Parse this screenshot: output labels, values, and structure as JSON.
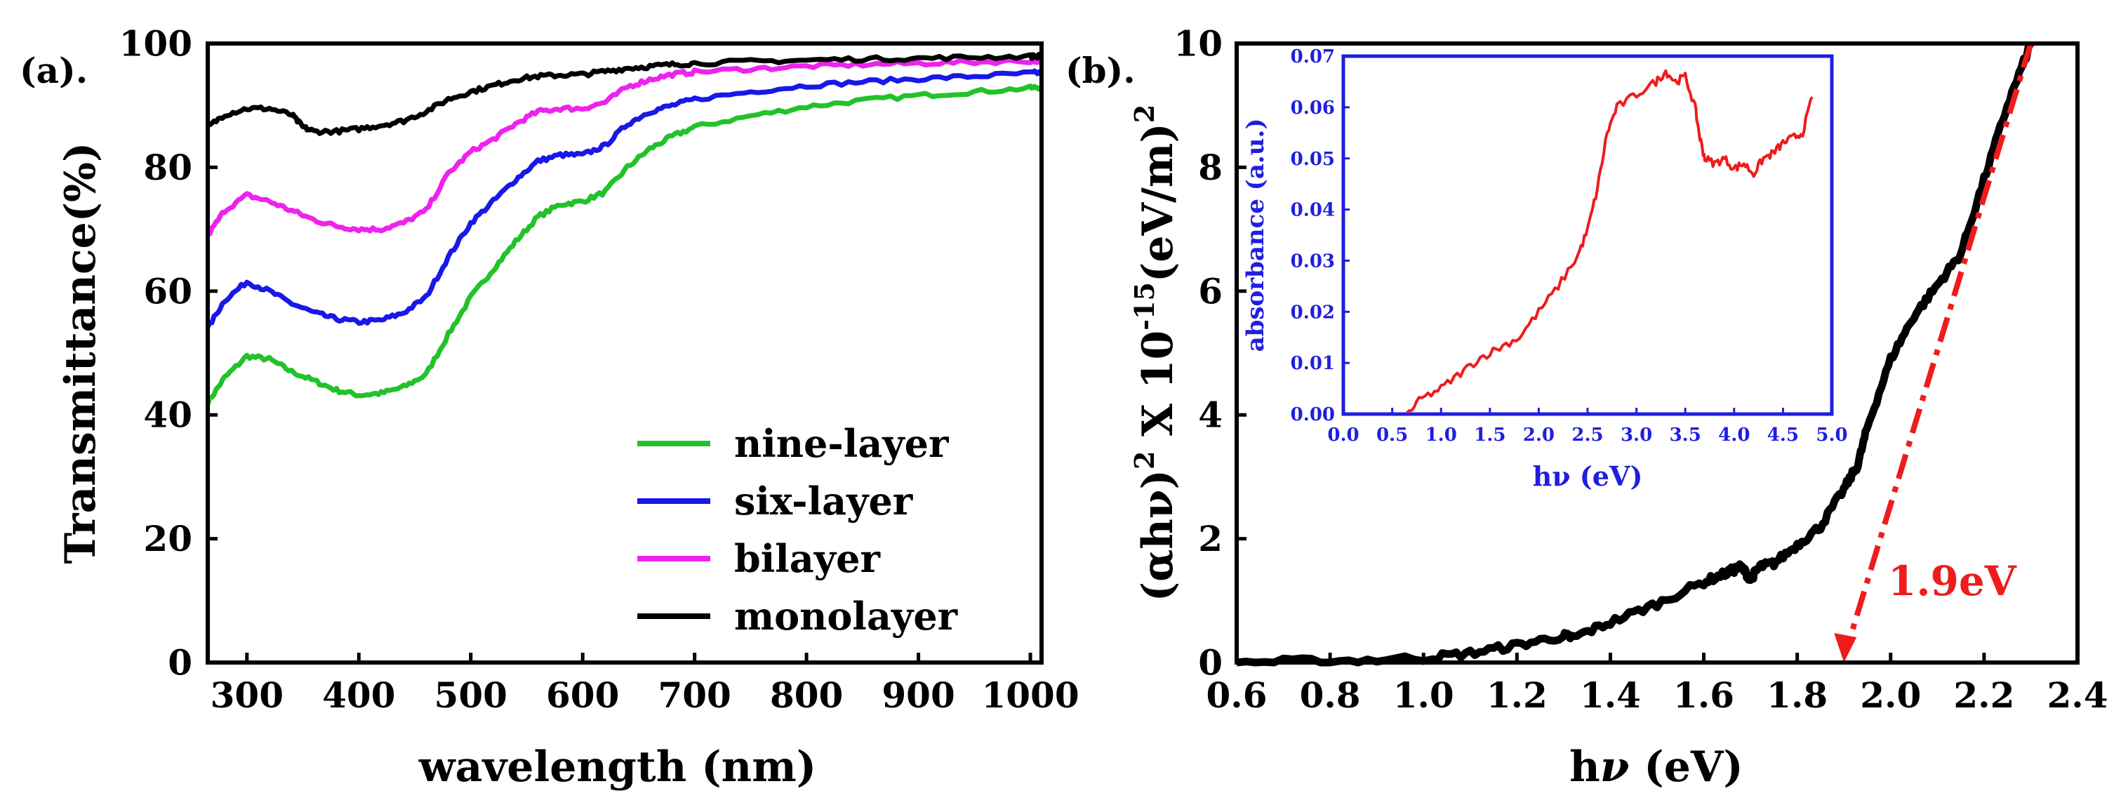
{
  "chart_data": [
    {
      "panel_label": "(a).",
      "type": "line",
      "xlabel": "wavelength (nm)",
      "ylabel": "Transmittance(%)",
      "xlim": [
        265,
        1010
      ],
      "ylim": [
        0,
        100
      ],
      "xticks": [
        300,
        400,
        500,
        600,
        700,
        800,
        900,
        1000
      ],
      "yticks": [
        0,
        20,
        40,
        60,
        80,
        100
      ],
      "legend_position": "bottom-right",
      "series": [
        {
          "name": "nine-layer",
          "color": "#22c22a",
          "x": [
            265,
            280,
            300,
            320,
            340,
            360,
            380,
            400,
            420,
            440,
            460,
            480,
            500,
            520,
            540,
            560,
            580,
            600,
            620,
            640,
            660,
            680,
            700,
            750,
            800,
            850,
            900,
            950,
            1000,
            1010
          ],
          "y": [
            42,
            46,
            49.5,
            49,
            47,
            45.5,
            44,
            43.2,
            43.5,
            44.5,
            46.5,
            53,
            59,
            63.5,
            68,
            72,
            74,
            74.5,
            76,
            80,
            83,
            85,
            86.5,
            88.3,
            89.8,
            90.8,
            91.6,
            92.2,
            92.8,
            93
          ]
        },
        {
          "name": "six-layer",
          "color": "#1818e8",
          "x": [
            265,
            280,
            300,
            320,
            340,
            360,
            380,
            400,
            420,
            440,
            460,
            480,
            500,
            520,
            540,
            560,
            580,
            600,
            620,
            640,
            660,
            680,
            700,
            750,
            800,
            850,
            900,
            950,
            1000,
            1010
          ],
          "y": [
            54,
            58.5,
            61.5,
            60,
            58,
            56.5,
            55.5,
            55,
            55.3,
            56.5,
            59,
            65.5,
            71,
            74.5,
            78,
            81,
            82,
            82,
            83.5,
            87,
            89,
            90,
            91,
            92.2,
            93.2,
            93.8,
            94.3,
            94.7,
            95.2,
            95.3
          ]
        },
        {
          "name": "bilayer",
          "color": "#ee22ee",
          "x": [
            265,
            280,
            300,
            320,
            340,
            360,
            380,
            400,
            420,
            440,
            460,
            480,
            500,
            520,
            540,
            560,
            580,
            600,
            620,
            640,
            660,
            680,
            700,
            750,
            800,
            850,
            900,
            950,
            1000,
            1010
          ],
          "y": [
            69,
            73,
            75.5,
            74.5,
            73,
            71.5,
            70.5,
            70,
            70,
            71,
            73,
            79,
            82.5,
            84.5,
            87,
            89,
            89.5,
            89.5,
            90.5,
            93,
            94.2,
            95,
            95.4,
            95.9,
            96.3,
            96.6,
            96.8,
            97,
            97.2,
            97.3
          ]
        },
        {
          "name": "monolayer",
          "color": "#000000",
          "x": [
            265,
            280,
            300,
            320,
            340,
            350,
            360,
            380,
            400,
            420,
            440,
            460,
            480,
            500,
            520,
            540,
            560,
            580,
            600,
            620,
            640,
            660,
            680,
            700,
            750,
            800,
            850,
            900,
            950,
            1000,
            1010
          ],
          "y": [
            86.5,
            88.5,
            89.5,
            89.5,
            88.5,
            86.5,
            85.8,
            85.8,
            86.2,
            86.8,
            87.5,
            89,
            91,
            92.2,
            93.2,
            94.2,
            94.7,
            94.9,
            95,
            95.5,
            96,
            96.3,
            96.6,
            96.8,
            97.1,
            97.3,
            97.5,
            97.6,
            97.8,
            97.9,
            98
          ]
        }
      ]
    },
    {
      "panel_label": "(b).",
      "type": "line",
      "xlabel": "hν (eV)",
      "ylabel": "(αhν)² X 10⁻¹⁵(eV/m)²",
      "ylabel_parts": {
        "a": "(αhν)",
        "exp2": "2",
        "b": " X 10",
        "exp15": "-15",
        "c": "(eV/m)"
      },
      "xlabel_parts": {
        "a": "h",
        "nu": "ν",
        "b": " (eV)"
      },
      "xlim": [
        0.6,
        2.4
      ],
      "ylim": [
        0,
        10
      ],
      "xticks": [
        0.6,
        0.8,
        1.0,
        1.2,
        1.4,
        1.6,
        1.8,
        2.0,
        2.2,
        2.4
      ],
      "yticks": [
        0,
        2,
        4,
        6,
        8,
        10
      ],
      "annotation": "1.9eV",
      "series": [
        {
          "name": "(αhν)^2",
          "color": "#000000",
          "x": [
            0.6,
            0.8,
            1.0,
            1.1,
            1.2,
            1.3,
            1.32,
            1.4,
            1.5,
            1.6,
            1.65,
            1.68,
            1.7,
            1.72,
            1.75,
            1.8,
            1.85,
            1.9,
            1.93,
            1.95,
            2.0,
            2.05,
            2.1,
            2.15,
            2.2,
            2.25,
            2.3
          ],
          "y": [
            0.0,
            0.02,
            0.07,
            0.15,
            0.28,
            0.43,
            0.4,
            0.65,
            0.95,
            1.3,
            1.45,
            1.55,
            1.35,
            1.55,
            1.6,
            1.9,
            2.2,
            2.8,
            3.2,
            3.8,
            4.9,
            5.6,
            6.1,
            6.6,
            7.8,
            9.0,
            10.0
          ]
        },
        {
          "name": "linear fit",
          "color": "#ee1c1c",
          "style": "dash-dot",
          "x": [
            1.9,
            2.3
          ],
          "y": [
            0.0,
            10.0
          ]
        }
      ],
      "inset": {
        "type": "line",
        "xlabel": "hν (eV)",
        "ylabel": "absorbance (a.u.)",
        "xlim": [
          0.0,
          5.0
        ],
        "ylim": [
          0.0,
          0.07
        ],
        "xticks": [
          "0.0",
          "0.5",
          "1.0",
          "1.5",
          "2.0",
          "2.5",
          "3.0",
          "3.5",
          "4.0",
          "4.5",
          "5.0"
        ],
        "yticks": [
          "0.00",
          "0.01",
          "0.02",
          "0.03",
          "0.04",
          "0.05",
          "0.06",
          "0.07"
        ],
        "series": [
          {
            "name": "absorbance",
            "color": "#ee1c1c",
            "x": [
              0.65,
              0.8,
              1.0,
              1.2,
              1.4,
              1.6,
              1.8,
              2.0,
              2.2,
              2.4,
              2.5,
              2.6,
              2.7,
              2.8,
              3.0,
              3.2,
              3.3,
              3.4,
              3.5,
              3.6,
              3.65,
              3.7,
              3.8,
              3.9,
              4.0,
              4.1,
              4.2,
              4.3,
              4.4,
              4.5,
              4.6,
              4.7,
              4.8
            ],
            "y": [
              0.0,
              0.003,
              0.005,
              0.008,
              0.011,
              0.013,
              0.015,
              0.02,
              0.025,
              0.031,
              0.036,
              0.044,
              0.055,
              0.06,
              0.0625,
              0.065,
              0.067,
              0.065,
              0.066,
              0.06,
              0.054,
              0.05,
              0.049,
              0.05,
              0.048,
              0.049,
              0.047,
              0.05,
              0.051,
              0.053,
              0.054,
              0.055,
              0.062
            ]
          }
        ]
      }
    }
  ]
}
